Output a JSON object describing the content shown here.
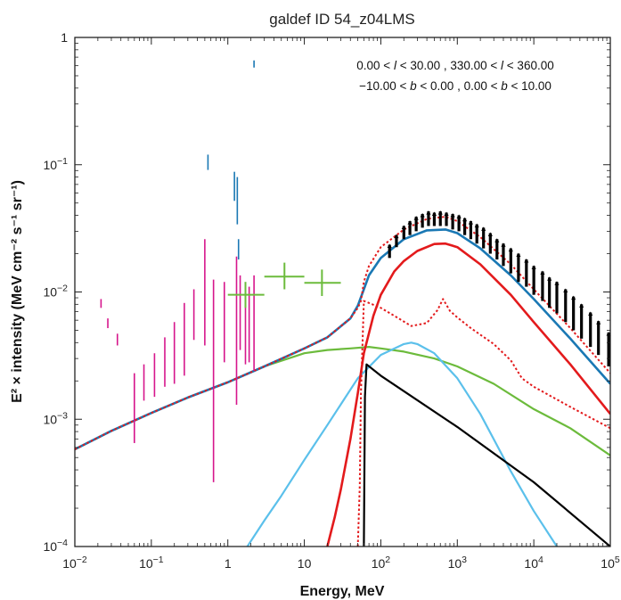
{
  "chart_data": {
    "type": "line",
    "title": "galdef ID 54_z04LMS",
    "xlabel": "Energy, MeV",
    "ylabel": "E² × intensity (MeV cm⁻² s⁻¹ sr⁻¹)",
    "x_scale": "log",
    "y_scale": "log",
    "xlim": [
      0.01,
      100000
    ],
    "ylim": [
      0.0001,
      1
    ],
    "x_ticks": [
      {
        "v": 0.01,
        "base": "10",
        "exp": "−2"
      },
      {
        "v": 0.1,
        "base": "10",
        "exp": "−1"
      },
      {
        "v": 1,
        "base": "1",
        "exp": ""
      },
      {
        "v": 10,
        "base": "10",
        "exp": ""
      },
      {
        "v": 100,
        "base": "10",
        "exp": "2"
      },
      {
        "v": 1000,
        "base": "10",
        "exp": "3"
      },
      {
        "v": 10000,
        "base": "10",
        "exp": "4"
      },
      {
        "v": 100000,
        "base": "10",
        "exp": "5"
      }
    ],
    "y_ticks": [
      {
        "v": 1,
        "base": "1",
        "exp": ""
      },
      {
        "v": 0.1,
        "base": "10",
        "exp": "−1"
      },
      {
        "v": 0.01,
        "base": "10",
        "exp": "−2"
      },
      {
        "v": 0.001,
        "base": "10",
        "exp": "−3"
      },
      {
        "v": 0.0001,
        "base": "10",
        "exp": "−4"
      }
    ],
    "annotation": {
      "line1": {
        "a": "0.00 < ",
        "b": "l",
        "c": " < 30.00 , 330.00 < ",
        "d": "l",
        "e": " < 360.00"
      },
      "line2": {
        "a": "−10.00 < ",
        "b": "b",
        "c": " < 0.00 ,  0.00 < ",
        "d": "b",
        "e": " < 10.00"
      }
    },
    "colors": {
      "total": "#1a78b4",
      "total_dotted": "#e31a1c",
      "pion": "#e31a1c",
      "ics": "#5bc0eb",
      "bremss": "#6cbb3c",
      "egb": "#000000",
      "data_lowE": "#d6168c",
      "data_comptel": "#6cbb3c",
      "data_egret": "#000000",
      "data_blue": "#1a78b4"
    },
    "series": [
      {
        "id": "total",
        "style": "solid",
        "width": 2.6,
        "x": [
          0.01,
          0.03,
          0.1,
          0.3,
          1,
          3,
          10,
          20,
          40,
          50,
          60,
          70,
          100,
          200,
          400,
          700,
          1000,
          2000,
          5000,
          10000,
          30000,
          100000
        ],
        "y": [
          0.00058,
          0.00081,
          0.00112,
          0.00148,
          0.00195,
          0.0026,
          0.0036,
          0.0044,
          0.0062,
          0.0078,
          0.0105,
          0.0135,
          0.0185,
          0.026,
          0.0305,
          0.031,
          0.029,
          0.022,
          0.0135,
          0.0088,
          0.0043,
          0.0019
        ]
      },
      {
        "id": "total_dotted",
        "style": "dotted",
        "width": 2,
        "x": [
          0.01,
          0.03,
          0.1,
          0.3,
          1,
          3,
          10,
          20,
          40,
          50,
          55,
          60,
          70,
          100,
          200,
          400,
          700,
          1000,
          2000,
          5000,
          10000,
          30000,
          100000
        ],
        "y": [
          0.00058,
          0.00081,
          0.00112,
          0.00148,
          0.00195,
          0.0026,
          0.0036,
          0.0044,
          0.0062,
          0.0075,
          0.0085,
          0.012,
          0.016,
          0.0225,
          0.031,
          0.0375,
          0.039,
          0.036,
          0.027,
          0.0165,
          0.0105,
          0.0052,
          0.0023
        ]
      },
      {
        "id": "pion",
        "style": "solid",
        "width": 2.6,
        "x": [
          20,
          25,
          30,
          40,
          50,
          60,
          80,
          100,
          150,
          200,
          300,
          500,
          700,
          1000,
          2000,
          5000,
          10000,
          30000,
          100000
        ],
        "y": [
          0.0001,
          0.00017,
          0.00028,
          0.0007,
          0.0016,
          0.0033,
          0.0065,
          0.0095,
          0.0145,
          0.0175,
          0.021,
          0.0238,
          0.024,
          0.0225,
          0.0165,
          0.0095,
          0.0058,
          0.0027,
          0.0011
        ]
      },
      {
        "id": "pion_dotted",
        "style": "dotted",
        "width": 2,
        "x": [
          50,
          53,
          55,
          60,
          70,
          100,
          150,
          250,
          400,
          550,
          650,
          800,
          1000,
          1500,
          3000,
          5000,
          7000,
          10000,
          30000,
          100000
        ],
        "y": [
          0.0001,
          0.0003,
          0.0016,
          0.0085,
          0.0082,
          0.0075,
          0.0065,
          0.0054,
          0.0057,
          0.0072,
          0.0088,
          0.0071,
          0.0063,
          0.0052,
          0.0039,
          0.0029,
          0.0021,
          0.0018,
          0.00125,
          0.00085
        ]
      },
      {
        "id": "ics",
        "style": "solid",
        "width": 2.2,
        "x": [
          1.8,
          3,
          5,
          10,
          20,
          50,
          100,
          200,
          250,
          300,
          500,
          1000,
          2000,
          5000,
          10000,
          20000
        ],
        "y": [
          0.0001,
          0.00016,
          0.00025,
          0.00048,
          0.0009,
          0.0021,
          0.0032,
          0.0039,
          0.004,
          0.0039,
          0.0033,
          0.0021,
          0.0011,
          0.00039,
          0.00019,
          0.0001
        ]
      },
      {
        "id": "bremss",
        "style": "solid",
        "width": 2.2,
        "x": [
          0.01,
          0.03,
          0.1,
          0.3,
          1,
          3,
          10,
          20,
          40,
          70,
          100,
          200,
          500,
          1000,
          3000,
          10000,
          30000,
          100000
        ],
        "y": [
          0.00058,
          0.00081,
          0.00112,
          0.00148,
          0.00195,
          0.0026,
          0.0033,
          0.0035,
          0.0036,
          0.0037,
          0.0036,
          0.0034,
          0.003,
          0.0026,
          0.0019,
          0.0012,
          0.00085,
          0.00052
        ]
      },
      {
        "id": "egb",
        "style": "solid",
        "width": 2.2,
        "x": [
          60,
          62,
          65,
          100,
          1000,
          10000,
          100000
        ],
        "y": [
          0.0001,
          0.0015,
          0.0027,
          0.0022,
          0.00087,
          0.00032,
          0.0001
        ]
      }
    ],
    "error_bars": {
      "data_lowE": [
        {
          "x": 0.022,
          "lo": 0.0075,
          "hi": 0.0088
        },
        {
          "x": 0.027,
          "lo": 0.0052,
          "hi": 0.0062
        },
        {
          "x": 0.036,
          "lo": 0.0038,
          "hi": 0.0047
        },
        {
          "x": 0.06,
          "lo": 0.00065,
          "hi": 0.0023
        },
        {
          "x": 0.08,
          "lo": 0.0014,
          "hi": 0.0027
        },
        {
          "x": 0.11,
          "lo": 0.0015,
          "hi": 0.0033
        },
        {
          "x": 0.15,
          "lo": 0.0018,
          "hi": 0.0044
        },
        {
          "x": 0.2,
          "lo": 0.0019,
          "hi": 0.0058
        },
        {
          "x": 0.27,
          "lo": 0.0022,
          "hi": 0.0082
        },
        {
          "x": 0.36,
          "lo": 0.0042,
          "hi": 0.0105
        },
        {
          "x": 0.5,
          "lo": 0.0038,
          "hi": 0.026
        },
        {
          "x": 0.65,
          "lo": 0.00032,
          "hi": 0.0125
        },
        {
          "x": 0.9,
          "lo": 0.0028,
          "hi": 0.012
        },
        {
          "x": 1.3,
          "lo": 0.0013,
          "hi": 0.019
        },
        {
          "x": 1.45,
          "lo": 0.0035,
          "hi": 0.0135
        },
        {
          "x": 1.7,
          "lo": 0.0027,
          "hi": 0.0095
        },
        {
          "x": 1.9,
          "lo": 0.0028,
          "hi": 0.011
        },
        {
          "x": 2.2,
          "lo": 0.0024,
          "hi": 0.0135
        }
      ],
      "data_blue": [
        {
          "x": 0.55,
          "lo": 0.091,
          "hi": 0.12
        },
        {
          "x": 1.22,
          "lo": 0.052,
          "hi": 0.088
        },
        {
          "x": 1.33,
          "lo": 0.034,
          "hi": 0.08
        },
        {
          "x": 1.38,
          "lo": 0.018,
          "hi": 0.026
        },
        {
          "x": 2.2,
          "lo": 0.58,
          "hi": 0.66
        }
      ],
      "data_comptel": [
        {
          "x": 1.7,
          "x_lo": 1.0,
          "x_hi": 3.0,
          "y": 0.0095,
          "y_lo": 0.0075,
          "y_hi": 0.012
        },
        {
          "x": 5.5,
          "x_lo": 3.0,
          "x_hi": 10.0,
          "y": 0.0132,
          "y_lo": 0.0105,
          "y_hi": 0.017
        },
        {
          "x": 17,
          "x_lo": 10.0,
          "x_hi": 30.0,
          "y": 0.0118,
          "y_lo": 0.0093,
          "y_hi": 0.015
        }
      ],
      "data_egret": [
        {
          "x": 130,
          "lo": 0.0185,
          "hi": 0.0235
        },
        {
          "x": 160,
          "lo": 0.0225,
          "hi": 0.028
        },
        {
          "x": 200,
          "lo": 0.026,
          "hi": 0.033
        },
        {
          "x": 240,
          "lo": 0.028,
          "hi": 0.036
        },
        {
          "x": 290,
          "lo": 0.03,
          "hi": 0.039
        },
        {
          "x": 350,
          "lo": 0.032,
          "hi": 0.041
        },
        {
          "x": 420,
          "lo": 0.033,
          "hi": 0.043
        },
        {
          "x": 500,
          "lo": 0.033,
          "hi": 0.042
        },
        {
          "x": 600,
          "lo": 0.033,
          "hi": 0.043
        },
        {
          "x": 720,
          "lo": 0.033,
          "hi": 0.042
        },
        {
          "x": 870,
          "lo": 0.031,
          "hi": 0.041
        },
        {
          "x": 1050,
          "lo": 0.03,
          "hi": 0.04
        },
        {
          "x": 1250,
          "lo": 0.028,
          "hi": 0.038
        },
        {
          "x": 1500,
          "lo": 0.026,
          "hi": 0.036
        },
        {
          "x": 1800,
          "lo": 0.024,
          "hi": 0.034
        },
        {
          "x": 2200,
          "lo": 0.022,
          "hi": 0.032
        },
        {
          "x": 2700,
          "lo": 0.02,
          "hi": 0.029
        },
        {
          "x": 3300,
          "lo": 0.018,
          "hi": 0.026
        },
        {
          "x": 4000,
          "lo": 0.016,
          "hi": 0.024
        },
        {
          "x": 5000,
          "lo": 0.014,
          "hi": 0.022
        },
        {
          "x": 6300,
          "lo": 0.012,
          "hi": 0.02
        },
        {
          "x": 8000,
          "lo": 0.011,
          "hi": 0.018
        },
        {
          "x": 10000,
          "lo": 0.0095,
          "hi": 0.016
        },
        {
          "x": 13000,
          "lo": 0.0085,
          "hi": 0.0145
        },
        {
          "x": 16000,
          "lo": 0.0075,
          "hi": 0.013
        },
        {
          "x": 20000,
          "lo": 0.0068,
          "hi": 0.012
        },
        {
          "x": 26000,
          "lo": 0.0058,
          "hi": 0.0105
        },
        {
          "x": 33000,
          "lo": 0.005,
          "hi": 0.0092
        },
        {
          "x": 42000,
          "lo": 0.0043,
          "hi": 0.008
        },
        {
          "x": 55000,
          "lo": 0.0037,
          "hi": 0.0069
        },
        {
          "x": 70000,
          "lo": 0.0032,
          "hi": 0.0059
        },
        {
          "x": 95000,
          "lo": 0.0026,
          "hi": 0.0048
        }
      ]
    },
    "grid": false,
    "legend": "none"
  }
}
